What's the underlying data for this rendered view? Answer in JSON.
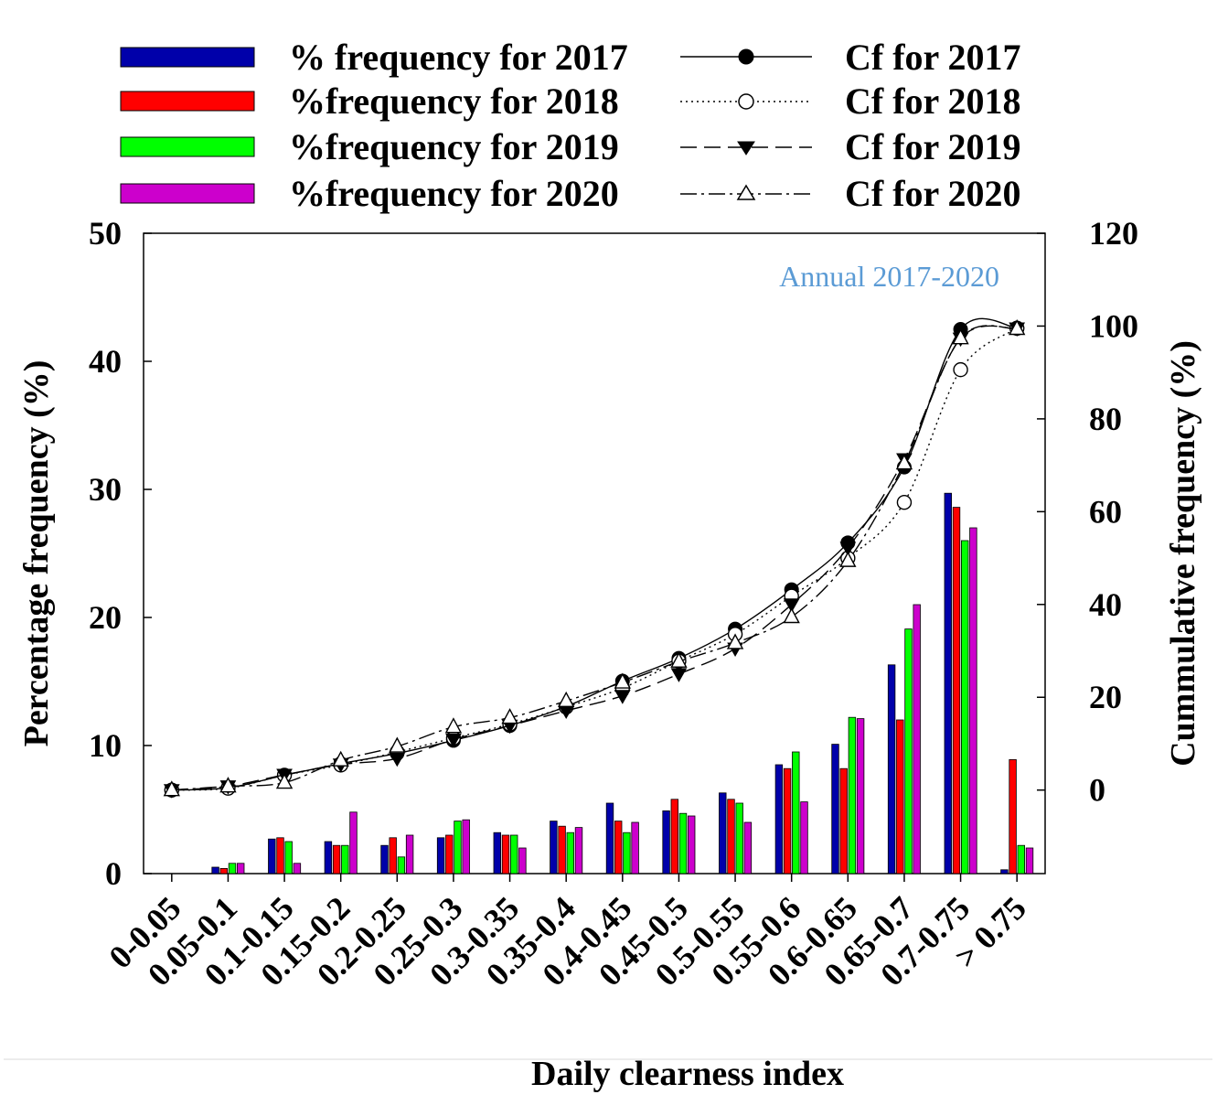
{
  "chart_data": {
    "type": "bar",
    "title": "",
    "annotation": "Annual 2017-2020",
    "xlabel": "Daily clearness index",
    "ylabel": "Percentage frequency (%)",
    "y2label": "Cummulative frequency (%)",
    "ylim": [
      0,
      50
    ],
    "yticks": [
      "0",
      "10",
      "20",
      "30",
      "40",
      "50"
    ],
    "y2lim": [
      -18,
      120
    ],
    "y2ticks": [
      "0",
      "20",
      "40",
      "60",
      "80",
      "100",
      "120"
    ],
    "grid": false,
    "legend_position": "top",
    "categories": [
      "0-0.05",
      "0.05-0.1",
      "0.1-0.15",
      "0.15-0.2",
      "0.2-0.25",
      "0.25-0.3",
      "0.3-0.35",
      "0.35-0.4",
      "0.4-0.45",
      "0.45-0.5",
      "0.5-0.55",
      "0.55-0.6",
      "0.6-0.65",
      "0.65-0.7",
      "0.7-0.75",
      "> 0.75"
    ],
    "series": [
      {
        "name": "% frequency for 2017",
        "type": "bar",
        "color": "#0000aa",
        "values": [
          0,
          0.5,
          2.7,
          2.5,
          2.2,
          2.8,
          3.2,
          4.1,
          5.5,
          4.9,
          6.3,
          8.5,
          10.1,
          16.3,
          29.7,
          0.3
        ]
      },
      {
        "name": "%frequency for 2018",
        "type": "bar",
        "color": "#ff0000",
        "values": [
          0,
          0.4,
          2.8,
          2.2,
          2.8,
          3.0,
          3.0,
          3.7,
          4.1,
          5.8,
          5.8,
          8.2,
          8.2,
          12.0,
          28.6,
          8.9
        ]
      },
      {
        "name": "%frequency for 2019",
        "type": "bar",
        "color": "#00ff00",
        "values": [
          0,
          0.8,
          2.5,
          2.2,
          1.3,
          4.1,
          3.0,
          3.2,
          3.2,
          4.7,
          5.5,
          9.5,
          12.2,
          19.1,
          26.0,
          2.2
        ]
      },
      {
        "name": "%frequency for 2020",
        "type": "bar",
        "color": "#cc00cc",
        "values": [
          0,
          0.8,
          0.8,
          4.8,
          3.0,
          4.2,
          2.0,
          3.6,
          4.0,
          4.5,
          4.0,
          5.6,
          12.1,
          21.0,
          27.0,
          2.0
        ]
      },
      {
        "name": "Cf for 2017",
        "type": "line",
        "marker": "circle-filled",
        "dash": "solid",
        "values": [
          0,
          0.5,
          3.2,
          5.7,
          7.9,
          10.7,
          13.9,
          18.0,
          23.5,
          28.4,
          34.7,
          43.2,
          53.3,
          69.6,
          99.3,
          99.6
        ]
      },
      {
        "name": "Cf for 2018",
        "type": "line",
        "marker": "circle-open",
        "dash": "dotted",
        "values": [
          0,
          0.4,
          3.2,
          5.4,
          8.2,
          11.2,
          14.2,
          17.9,
          22.0,
          27.8,
          33.6,
          41.8,
          50.0,
          62.0,
          90.6,
          99.5
        ]
      },
      {
        "name": "Cf for 2019",
        "type": "line",
        "marker": "triangle-down-filled",
        "dash": "dashed",
        "values": [
          0,
          0.8,
          3.3,
          5.5,
          6.8,
          10.9,
          13.9,
          17.1,
          20.3,
          25.0,
          30.5,
          40.0,
          52.2,
          71.3,
          97.3,
          99.5
        ]
      },
      {
        "name": "Cf for 2020",
        "type": "line",
        "marker": "triangle-up-open",
        "dash": "dashdot",
        "values": [
          0,
          0.8,
          1.6,
          6.4,
          9.4,
          13.6,
          15.6,
          19.2,
          23.2,
          27.7,
          31.7,
          37.3,
          49.4,
          70.4,
          97.4,
          99.4
        ]
      }
    ]
  }
}
